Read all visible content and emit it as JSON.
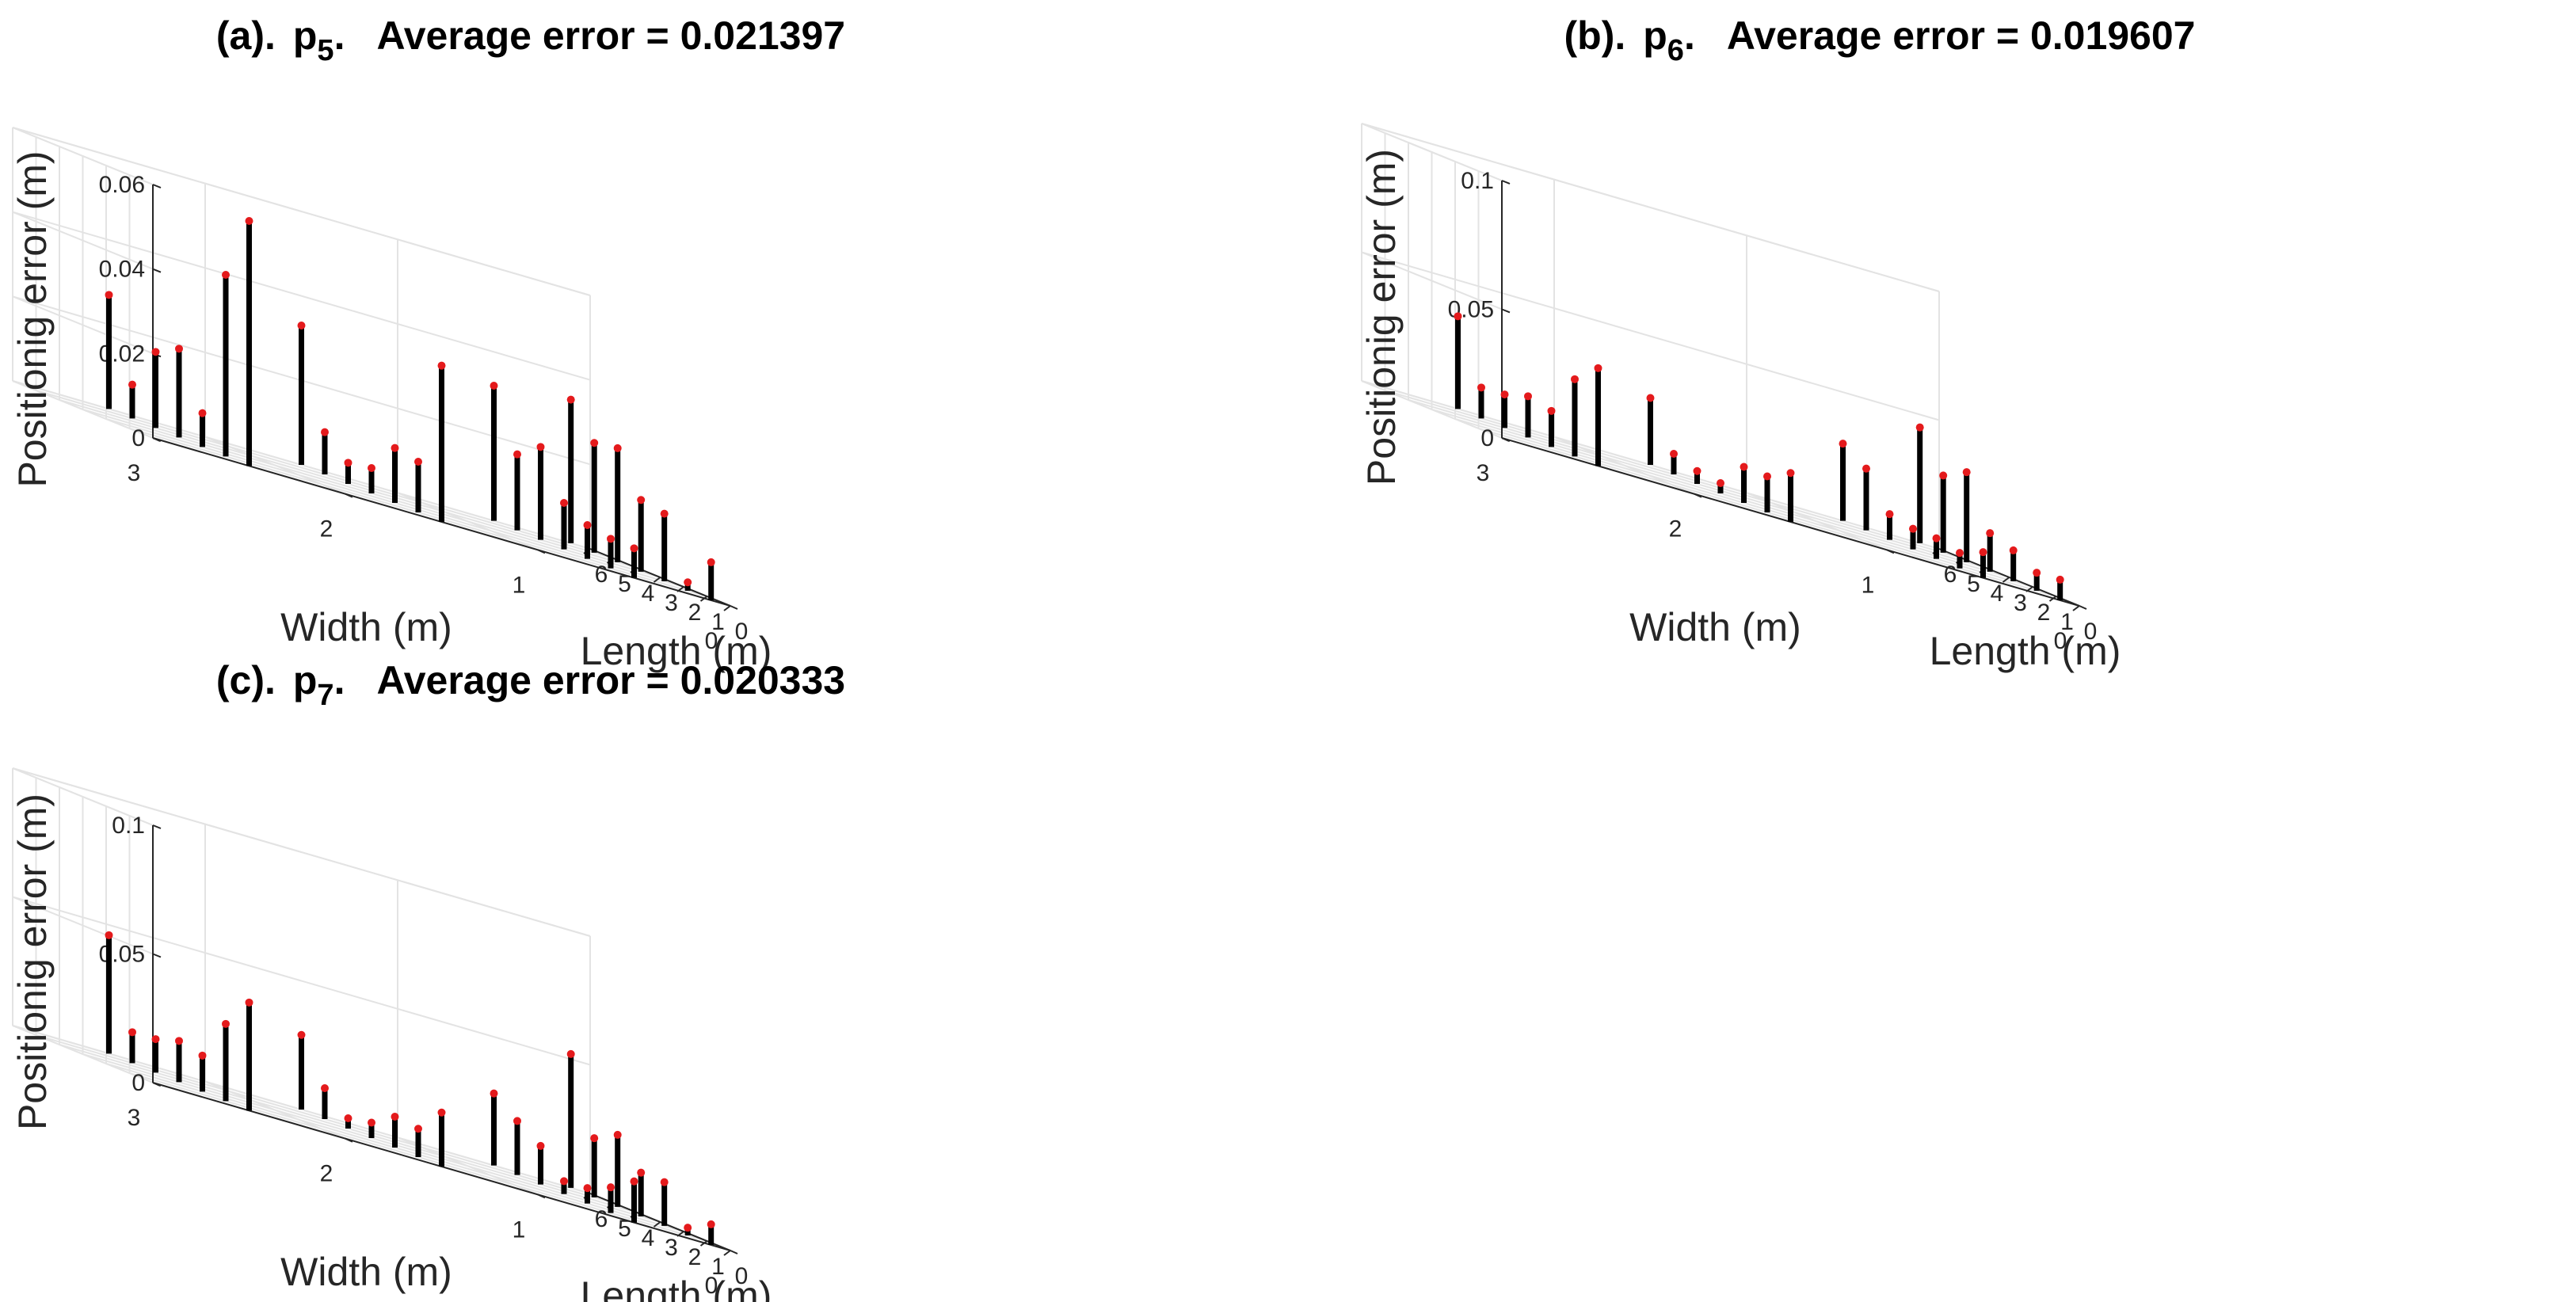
{
  "chart_data": [
    {
      "type": "3d-stem",
      "panel": "(a).",
      "param_base": "p",
      "param_sub": "5",
      "metric_label": "Average error = ",
      "metric_value": "0.021397",
      "xlabel": "Length (m)",
      "ylabel": "Width (m)",
      "zlabel": "Positionig error (m)",
      "xticks": [
        "0",
        "1",
        "2",
        "3",
        "4",
        "5",
        "6"
      ],
      "yticks": [
        "0",
        "1",
        "2",
        "3"
      ],
      "zticks": [
        {
          "v": 0,
          "t": "0"
        },
        {
          "v": 0.02,
          "t": "0.02"
        },
        {
          "v": 0.04,
          "t": "0.04"
        },
        {
          "v": 0.06,
          "t": "0.06"
        }
      ],
      "zlim": [
        0,
        0.06
      ],
      "grid": true,
      "points": [
        [
          0.0,
          2.5,
          0.058
        ],
        [
          1.0,
          2.5,
          0.043
        ],
        [
          2.0,
          2.5,
          0.008
        ],
        [
          3.0,
          2.5,
          0.021
        ],
        [
          4.0,
          2.5,
          0.018
        ],
        [
          5.0,
          2.5,
          0.008
        ],
        [
          6.0,
          2.5,
          0.027
        ],
        [
          0.0,
          1.5,
          0.037
        ],
        [
          1.0,
          1.5,
          0.012
        ],
        [
          2.0,
          1.5,
          0.013
        ],
        [
          3.0,
          1.5,
          0.006
        ],
        [
          4.0,
          1.5,
          0.005
        ],
        [
          5.0,
          1.5,
          0.01
        ],
        [
          6.0,
          1.5,
          0.033
        ],
        [
          0.0,
          0.5,
          0.007
        ],
        [
          1.0,
          0.5,
          0.007
        ],
        [
          2.0,
          0.5,
          0.008
        ],
        [
          3.0,
          0.5,
          0.011
        ],
        [
          4.0,
          0.5,
          0.022
        ],
        [
          5.0,
          0.5,
          0.018
        ],
        [
          6.0,
          0.5,
          0.032
        ],
        [
          0.0,
          0.1,
          0.009
        ],
        [
          1.0,
          0.1,
          0.002
        ],
        [
          2.0,
          0.1,
          0.016
        ],
        [
          3.0,
          0.1,
          0.017
        ],
        [
          4.0,
          0.1,
          0.027
        ],
        [
          5.0,
          0.1,
          0.026
        ],
        [
          6.0,
          0.1,
          0.034
        ]
      ]
    },
    {
      "type": "3d-stem",
      "panel": "(b).",
      "param_base": "p",
      "param_sub": "6",
      "metric_label": "Average error = ",
      "metric_value": "0.019607",
      "xlabel": "Length (m)",
      "ylabel": "Width (m)",
      "zlabel": "Positionig error (m)",
      "xticks": [
        "0",
        "1",
        "2",
        "3",
        "4",
        "5",
        "6"
      ],
      "yticks": [
        "0",
        "1",
        "2",
        "3"
      ],
      "zticks": [
        {
          "v": 0,
          "t": "0"
        },
        {
          "v": 0.05,
          "t": "0.05"
        },
        {
          "v": 0.1,
          "t": "0.1"
        }
      ],
      "zlim": [
        0,
        0.1
      ],
      "grid": true,
      "points": [
        [
          0.0,
          2.5,
          0.038
        ],
        [
          1.0,
          2.5,
          0.03
        ],
        [
          2.0,
          2.5,
          0.014
        ],
        [
          3.0,
          2.5,
          0.016
        ],
        [
          4.0,
          2.5,
          0.013
        ],
        [
          5.0,
          2.5,
          0.012
        ],
        [
          6.0,
          2.5,
          0.036
        ],
        [
          0.0,
          1.5,
          0.019
        ],
        [
          1.0,
          1.5,
          0.014
        ],
        [
          2.0,
          1.5,
          0.014
        ],
        [
          3.0,
          1.5,
          0.004
        ],
        [
          4.0,
          1.5,
          0.005
        ],
        [
          5.0,
          1.5,
          0.008
        ],
        [
          6.0,
          1.5,
          0.026
        ],
        [
          0.0,
          0.5,
          0.01
        ],
        [
          1.0,
          0.5,
          0.006
        ],
        [
          2.0,
          0.5,
          0.008
        ],
        [
          3.0,
          0.5,
          0.008
        ],
        [
          4.0,
          0.5,
          0.01
        ],
        [
          5.0,
          0.5,
          0.024
        ],
        [
          6.0,
          0.5,
          0.03
        ],
        [
          0.0,
          0.1,
          0.008
        ],
        [
          1.0,
          0.1,
          0.007
        ],
        [
          2.0,
          0.1,
          0.012
        ],
        [
          3.0,
          0.1,
          0.015
        ],
        [
          4.0,
          0.1,
          0.035
        ],
        [
          5.0,
          0.1,
          0.03
        ],
        [
          6.0,
          0.1,
          0.045
        ]
      ]
    },
    {
      "type": "3d-stem",
      "panel": "(c).",
      "param_base": "p",
      "param_sub": "7",
      "metric_label": "Average error = ",
      "metric_value": "0.020333",
      "xlabel": "Length (m)",
      "ylabel": "Width (m)",
      "zlabel": "Positionig error (m)",
      "xticks": [
        "0",
        "1",
        "2",
        "3",
        "4",
        "5",
        "6"
      ],
      "yticks": [
        "0",
        "1",
        "2",
        "3"
      ],
      "zticks": [
        {
          "v": 0,
          "t": "0"
        },
        {
          "v": 0.05,
          "t": "0.05"
        },
        {
          "v": 0.1,
          "t": "0.1"
        }
      ],
      "zlim": [
        0,
        0.1
      ],
      "grid": true,
      "points": [
        [
          0.0,
          2.5,
          0.042
        ],
        [
          1.0,
          2.5,
          0.03
        ],
        [
          2.0,
          2.5,
          0.014
        ],
        [
          3.0,
          2.5,
          0.016
        ],
        [
          4.0,
          2.5,
          0.013
        ],
        [
          5.0,
          2.5,
          0.012
        ],
        [
          6.0,
          2.5,
          0.046
        ],
        [
          0.0,
          1.5,
          0.021
        ],
        [
          1.0,
          1.5,
          0.011
        ],
        [
          2.0,
          1.5,
          0.012
        ],
        [
          3.0,
          1.5,
          0.006
        ],
        [
          4.0,
          1.5,
          0.004
        ],
        [
          5.0,
          1.5,
          0.012
        ],
        [
          6.0,
          1.5,
          0.029
        ],
        [
          0.0,
          0.5,
          0.016
        ],
        [
          1.0,
          0.5,
          0.01
        ],
        [
          2.0,
          0.5,
          0.006
        ],
        [
          3.0,
          0.5,
          0.005
        ],
        [
          4.0,
          0.5,
          0.015
        ],
        [
          5.0,
          0.5,
          0.021
        ],
        [
          6.0,
          0.5,
          0.028
        ],
        [
          0.0,
          0.1,
          0.008
        ],
        [
          1.0,
          0.1,
          0.003
        ],
        [
          2.0,
          0.1,
          0.017
        ],
        [
          3.0,
          0.1,
          0.017
        ],
        [
          4.0,
          0.1,
          0.028
        ],
        [
          5.0,
          0.1,
          0.023
        ],
        [
          6.0,
          0.1,
          0.052
        ]
      ]
    }
  ],
  "colors": {
    "stem": "#000000",
    "marker": "#e41a1c",
    "grid": "#e3e3e3",
    "axis": "#262626",
    "text": "#262626"
  }
}
